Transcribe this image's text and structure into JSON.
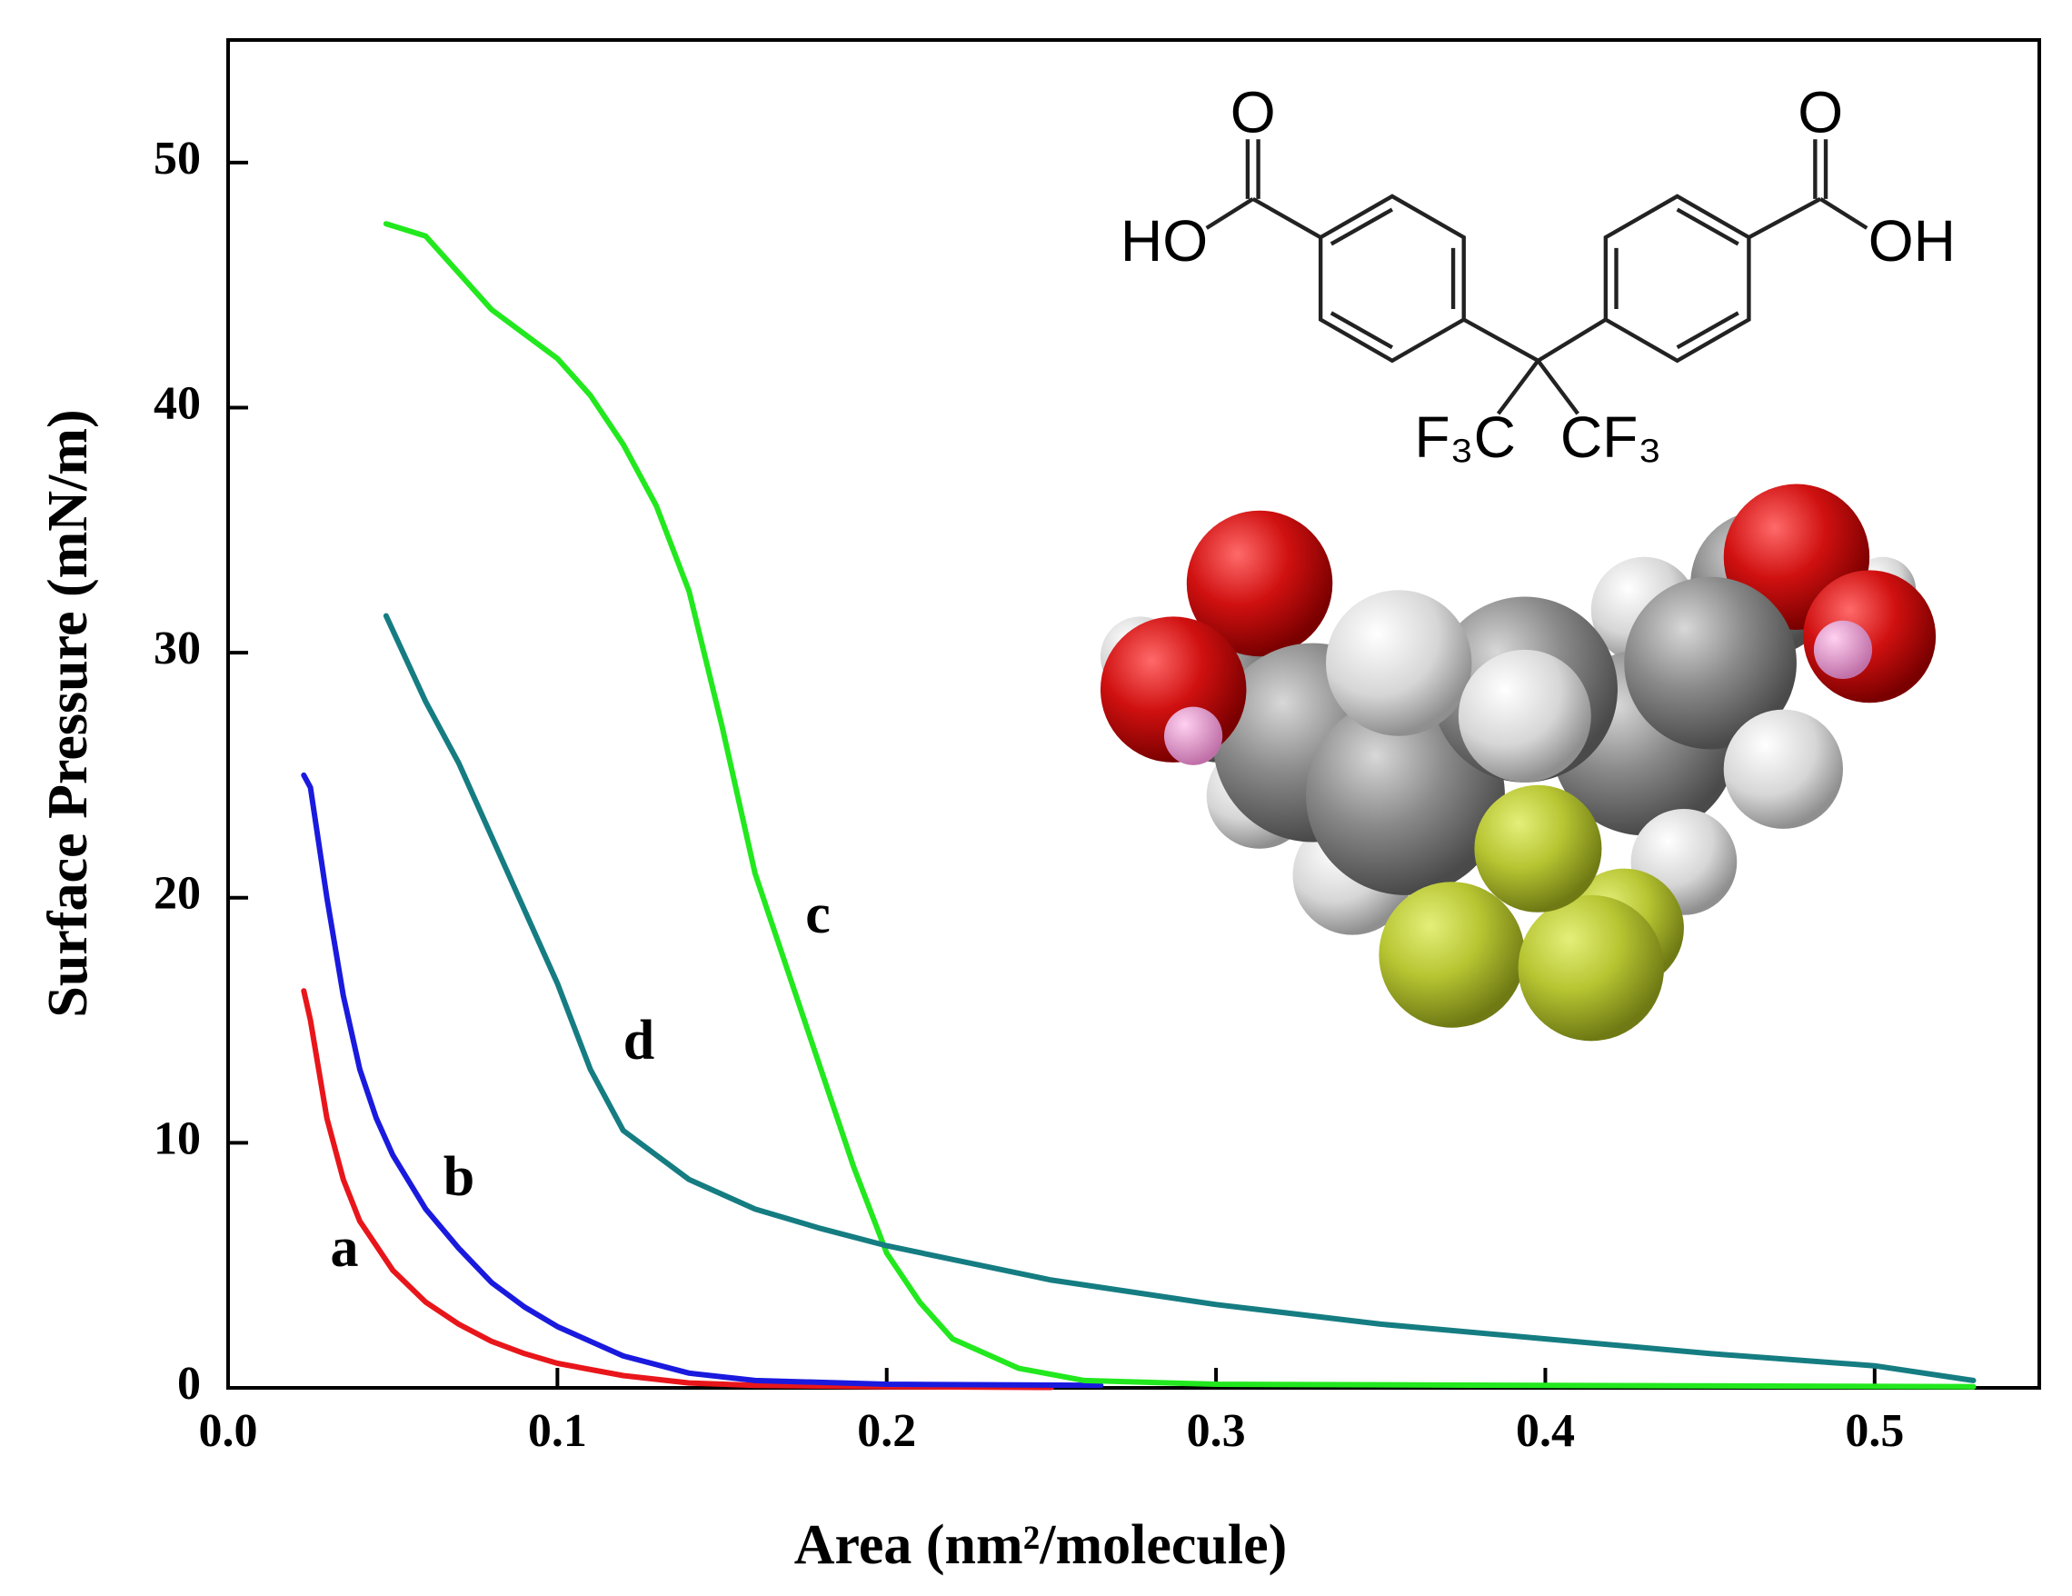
{
  "chart_data": {
    "type": "line",
    "xlabel": "Area (nm²/molecule)",
    "ylabel": "Surface Pressure (mN/m)",
    "xlim": [
      0,
      0.55
    ],
    "ylim": [
      0,
      55
    ],
    "xticks": [
      {
        "value": 0,
        "label": "0.0"
      },
      0.1,
      0.2,
      0.3,
      0.4,
      0.5
    ],
    "yticks": [
      0,
      10,
      20,
      30,
      40,
      50
    ],
    "series": [
      {
        "name": "a",
        "color": "#e8161b",
        "x": [
          0.023,
          0.025,
          0.03,
          0.035,
          0.04,
          0.045,
          0.05,
          0.06,
          0.07,
          0.08,
          0.09,
          0.1,
          0.12,
          0.14,
          0.16,
          0.2,
          0.25
        ],
        "values": [
          16.2,
          15,
          11,
          8.5,
          6.8,
          5.8,
          4.8,
          3.5,
          2.6,
          1.9,
          1.4,
          1.0,
          0.5,
          0.2,
          0.1,
          0.05,
          0.02
        ]
      },
      {
        "name": "b",
        "color": "#1a1adf",
        "x": [
          0.023,
          0.025,
          0.03,
          0.035,
          0.04,
          0.045,
          0.05,
          0.06,
          0.07,
          0.08,
          0.09,
          0.1,
          0.12,
          0.14,
          0.16,
          0.2,
          0.265
        ],
        "values": [
          25,
          24.5,
          20,
          16,
          13,
          11,
          9.5,
          7.3,
          5.7,
          4.3,
          3.3,
          2.5,
          1.3,
          0.6,
          0.3,
          0.15,
          0.1
        ]
      },
      {
        "name": "c",
        "color": "#22e81e",
        "x": [
          0.048,
          0.06,
          0.08,
          0.1,
          0.11,
          0.12,
          0.13,
          0.14,
          0.15,
          0.16,
          0.17,
          0.18,
          0.19,
          0.2,
          0.21,
          0.22,
          0.24,
          0.26,
          0.3,
          0.4,
          0.53
        ],
        "values": [
          47.5,
          47,
          44,
          42,
          40.5,
          38.5,
          36,
          32.5,
          27,
          21,
          17,
          13,
          9,
          5.5,
          3.5,
          2,
          0.8,
          0.3,
          0.15,
          0.1,
          0.05
        ]
      },
      {
        "name": "d",
        "color": "#157d82",
        "x": [
          0.048,
          0.06,
          0.07,
          0.08,
          0.09,
          0.1,
          0.11,
          0.12,
          0.14,
          0.16,
          0.18,
          0.2,
          0.25,
          0.3,
          0.35,
          0.4,
          0.45,
          0.5,
          0.52,
          0.53
        ],
        "values": [
          31.5,
          28,
          25.5,
          22.5,
          19.5,
          16.5,
          13,
          10.5,
          8.5,
          7.3,
          6.5,
          5.8,
          4.4,
          3.4,
          2.6,
          2,
          1.4,
          0.9,
          0.5,
          0.3
        ]
      }
    ]
  },
  "structure": {
    "labels": [
      "O",
      "HO",
      "O",
      "OH",
      "F₃C",
      "CF₃"
    ]
  }
}
